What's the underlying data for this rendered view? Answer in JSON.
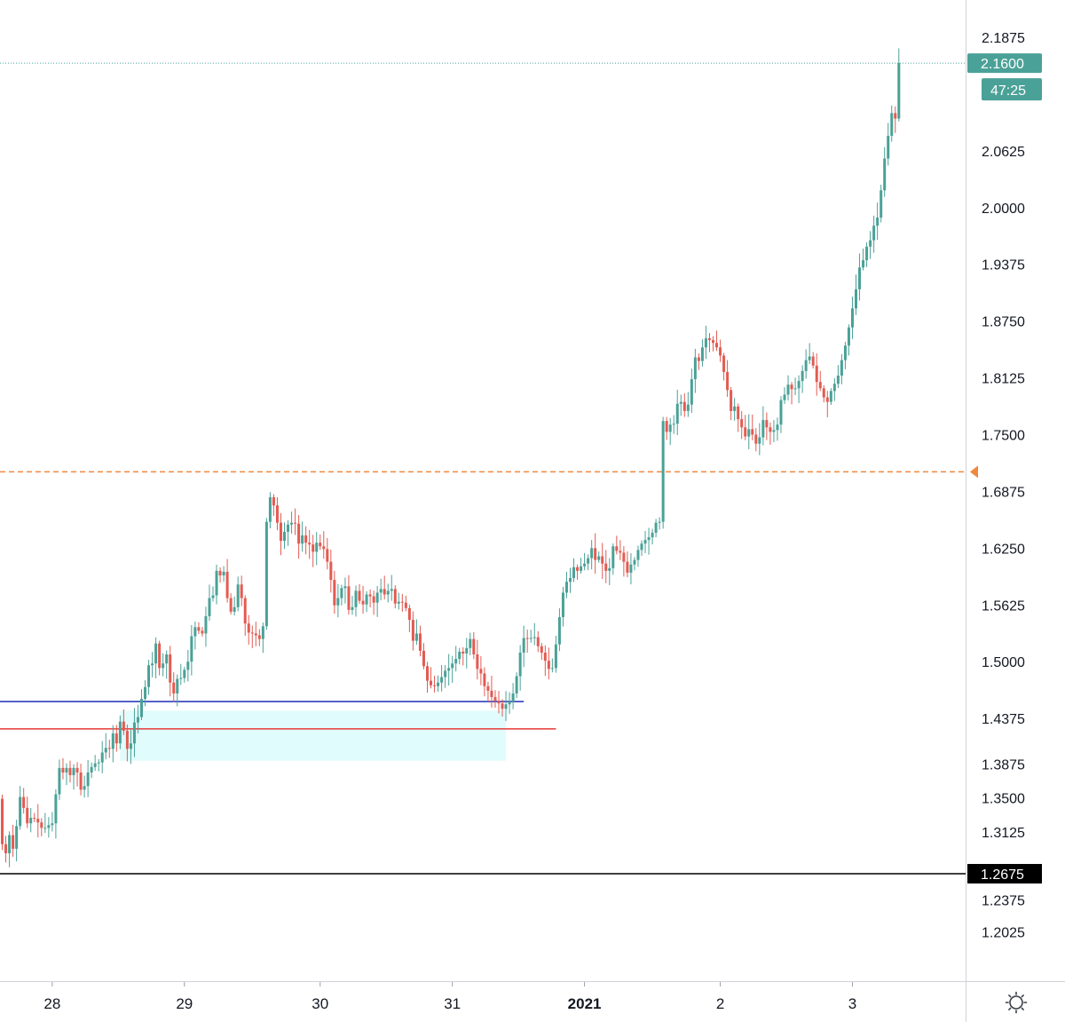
{
  "chart_data": {
    "type": "candlestick",
    "title": "",
    "xlabel": "",
    "ylabel": "",
    "ylim": [
      1.19,
      2.25
    ],
    "y_ticks": [
      {
        "value": 2.1875,
        "label": "2.1875"
      },
      {
        "value": 2.0625,
        "label": "2.0625"
      },
      {
        "value": 2.0,
        "label": "2.0000"
      },
      {
        "value": 1.9375,
        "label": "1.9375"
      },
      {
        "value": 1.875,
        "label": "1.8750"
      },
      {
        "value": 1.8125,
        "label": "1.8125"
      },
      {
        "value": 1.75,
        "label": "1.7500"
      },
      {
        "value": 1.6875,
        "label": "1.6875"
      },
      {
        "value": 1.625,
        "label": "1.6250"
      },
      {
        "value": 1.5625,
        "label": "1.5625"
      },
      {
        "value": 1.5,
        "label": "1.5000"
      },
      {
        "value": 1.4375,
        "label": "1.4375"
      },
      {
        "value": 1.3875,
        "label": "1.3875"
      },
      {
        "value": 1.35,
        "label": "1.3500"
      },
      {
        "value": 1.3125,
        "label": "1.3125"
      },
      {
        "value": 1.2375,
        "label": "1.2375"
      },
      {
        "value": 1.2025,
        "label": "1.2025"
      }
    ],
    "x_ticks": [
      {
        "label": "28",
        "bold": false
      },
      {
        "label": "29",
        "bold": false
      },
      {
        "label": "30",
        "bold": false
      },
      {
        "label": "31",
        "bold": false
      },
      {
        "label": "2021",
        "bold": true
      },
      {
        "label": "2",
        "bold": false
      },
      {
        "label": "3",
        "bold": false
      }
    ],
    "x_ticks_index": [
      15,
      52,
      90,
      127,
      164,
      202,
      239
    ],
    "last_price": {
      "value": 2.16,
      "label": "2.1600",
      "countdown": "47:25",
      "color": "#4aa197"
    },
    "black_line": {
      "value": 1.2675,
      "label": "1.2675",
      "color": "#000000"
    },
    "orange_line": {
      "value": 1.71,
      "color": "#f0883e",
      "style": "dashed"
    },
    "blue_line": {
      "value": 1.457,
      "color": "#1f2fb8",
      "end_index": 147
    },
    "red_line": {
      "value": 1.427,
      "color": "#e53935",
      "end_index": 156
    },
    "zone": {
      "top": 1.447,
      "bottom": 1.392,
      "start_index": 34,
      "end_index": 142,
      "color": "#e0fcfc"
    },
    "up_color": "#4aa197",
    "down_color": "#e25b52",
    "gear_icon": "gear-icon",
    "closes": [
      1.35,
      1.3,
      1.29,
      1.31,
      1.295,
      1.32,
      1.352,
      1.34,
      1.323,
      1.329,
      1.328,
      1.324,
      1.318,
      1.318,
      1.321,
      1.323,
      1.355,
      1.384,
      1.379,
      1.384,
      1.376,
      1.384,
      1.379,
      1.36,
      1.364,
      1.379,
      1.385,
      1.389,
      1.39,
      1.401,
      1.406,
      1.405,
      1.422,
      1.411,
      1.435,
      1.425,
      1.405,
      1.411,
      1.434,
      1.44,
      1.46,
      1.473,
      1.497,
      1.499,
      1.521,
      1.494,
      1.499,
      1.509,
      1.478,
      1.466,
      1.482,
      1.483,
      1.492,
      1.501,
      1.529,
      1.539,
      1.535,
      1.532,
      1.551,
      1.571,
      1.574,
      1.601,
      1.596,
      1.6,
      1.571,
      1.556,
      1.561,
      1.586,
      1.571,
      1.543,
      1.533,
      1.532,
      1.53,
      1.526,
      1.54,
      1.655,
      1.682,
      1.673,
      1.654,
      1.634,
      1.644,
      1.652,
      1.654,
      1.653,
      1.631,
      1.64,
      1.632,
      1.63,
      1.622,
      1.632,
      1.628,
      1.625,
      1.611,
      1.591,
      1.563,
      1.571,
      1.582,
      1.584,
      1.558,
      1.561,
      1.579,
      1.568,
      1.564,
      1.575,
      1.573,
      1.566,
      1.577,
      1.581,
      1.575,
      1.579,
      1.581,
      1.565,
      1.567,
      1.566,
      1.56,
      1.547,
      1.524,
      1.532,
      1.513,
      1.496,
      1.48,
      1.475,
      1.474,
      1.478,
      1.484,
      1.491,
      1.494,
      1.499,
      1.504,
      1.512,
      1.51,
      1.516,
      1.526,
      1.509,
      1.493,
      1.488,
      1.474,
      1.469,
      1.462,
      1.458,
      1.455,
      1.449,
      1.454,
      1.457,
      1.466,
      1.485,
      1.511,
      1.527,
      1.526,
      1.527,
      1.528,
      1.518,
      1.511,
      1.502,
      1.493,
      1.494,
      1.52,
      1.55,
      1.577,
      1.589,
      1.593,
      1.605,
      1.601,
      1.606,
      1.609,
      1.615,
      1.626,
      1.613,
      1.617,
      1.609,
      1.601,
      1.604,
      1.628,
      1.623,
      1.621,
      1.611,
      1.599,
      1.608,
      1.613,
      1.624,
      1.631,
      1.635,
      1.638,
      1.643,
      1.654,
      1.655,
      1.766,
      1.754,
      1.762,
      1.763,
      1.785,
      1.787,
      1.777,
      1.784,
      1.812,
      1.836,
      1.832,
      1.847,
      1.857,
      1.855,
      1.852,
      1.847,
      1.838,
      1.82,
      1.8,
      1.777,
      1.782,
      1.768,
      1.759,
      1.749,
      1.757,
      1.751,
      1.741,
      1.748,
      1.767,
      1.759,
      1.754,
      1.756,
      1.762,
      1.789,
      1.795,
      1.806,
      1.801,
      1.802,
      1.81,
      1.821,
      1.833,
      1.837,
      1.827,
      1.809,
      1.802,
      1.792,
      1.787,
      1.799,
      1.807,
      1.816,
      1.833,
      1.849,
      1.869,
      1.89,
      1.911,
      1.935,
      1.943,
      1.958,
      1.965,
      1.981,
      1.99,
      2.02,
      2.055,
      2.08,
      2.105,
      2.099,
      2.16
    ]
  }
}
